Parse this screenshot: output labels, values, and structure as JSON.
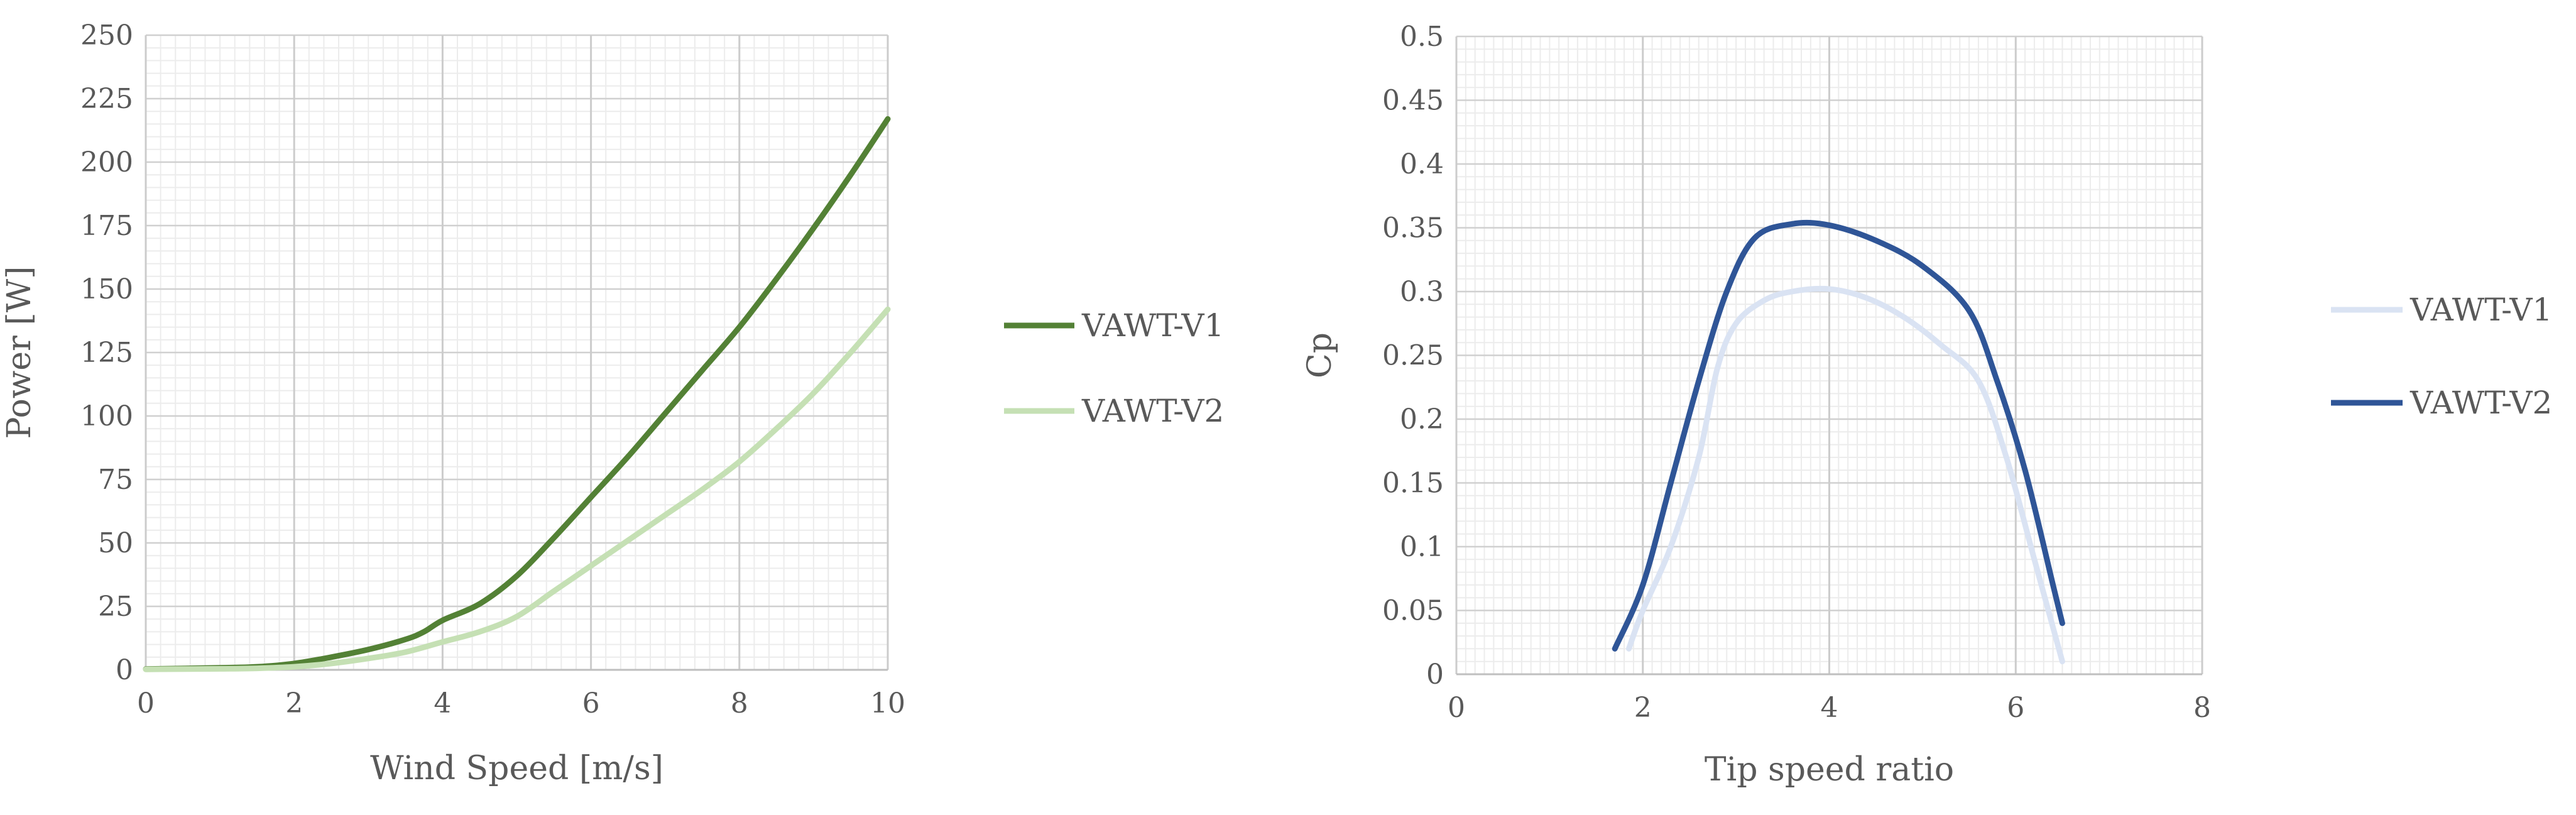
{
  "chart_data": [
    {
      "type": "line",
      "xlabel": "Wind Speed [m/s]",
      "ylabel": "Power [W]",
      "xlim": [
        0,
        10
      ],
      "ylim": [
        0,
        250
      ],
      "xticks": [
        0,
        2,
        4,
        6,
        8,
        10
      ],
      "yticks": [
        0,
        25,
        50,
        75,
        100,
        125,
        150,
        175,
        200,
        225,
        250
      ],
      "grid": true,
      "legend_position": "right",
      "series": [
        {
          "name": "VAWT-V1",
          "color": "#538135",
          "points": [
            [
              0,
              0.3
            ],
            [
              1,
              0.8
            ],
            [
              1.5,
              1.2
            ],
            [
              2,
              2.5
            ],
            [
              2.5,
              5
            ],
            [
              3,
              8
            ],
            [
              3.5,
              12
            ],
            [
              3.75,
              15
            ],
            [
              4,
              19.5
            ],
            [
              4.5,
              26
            ],
            [
              5,
              37
            ],
            [
              5.5,
              52
            ],
            [
              6,
              68
            ],
            [
              6.5,
              84
            ],
            [
              7,
              101
            ],
            [
              7.5,
              118
            ],
            [
              8,
              135
            ],
            [
              8.5,
              154
            ],
            [
              9,
              174
            ],
            [
              9.5,
              195
            ],
            [
              10,
              217
            ]
          ]
        },
        {
          "name": "VAWT-V2",
          "color": "#C5E0B4",
          "points": [
            [
              0,
              0.2
            ],
            [
              1,
              0.4
            ],
            [
              1.5,
              0.6
            ],
            [
              2,
              1.2
            ],
            [
              2.5,
              2.5
            ],
            [
              3,
              4.5
            ],
            [
              3.5,
              7
            ],
            [
              4,
              11
            ],
            [
              4.5,
              15
            ],
            [
              5,
              21
            ],
            [
              5.5,
              31
            ],
            [
              6,
              41
            ],
            [
              6.5,
              51
            ],
            [
              7,
              61
            ],
            [
              7.5,
              71
            ],
            [
              8,
              82
            ],
            [
              8.5,
              95
            ],
            [
              9,
              109
            ],
            [
              9.5,
              125
            ],
            [
              10,
              142
            ]
          ]
        }
      ]
    },
    {
      "type": "line",
      "xlabel": "Tip speed ratio",
      "ylabel": "Cp",
      "xlim": [
        0,
        8
      ],
      "ylim": [
        0,
        0.5
      ],
      "xticks": [
        0,
        2,
        4,
        6,
        8
      ],
      "yticks": [
        0,
        0.05,
        0.1,
        0.15,
        0.2,
        0.25,
        0.3,
        0.35,
        0.4,
        0.45,
        0.5
      ],
      "grid": true,
      "legend_position": "right",
      "series": [
        {
          "name": "VAWT-V1",
          "color": "#DAE3F3",
          "points": [
            [
              1.85,
              0.02
            ],
            [
              2,
              0.05
            ],
            [
              2.3,
              0.1
            ],
            [
              2.6,
              0.17
            ],
            [
              2.8,
              0.24
            ],
            [
              3,
              0.275
            ],
            [
              3.3,
              0.293
            ],
            [
              3.6,
              0.3
            ],
            [
              4,
              0.302
            ],
            [
              4.4,
              0.295
            ],
            [
              4.8,
              0.28
            ],
            [
              5.2,
              0.258
            ],
            [
              5.6,
              0.23
            ],
            [
              5.9,
              0.17
            ],
            [
              6.2,
              0.09
            ],
            [
              6.5,
              0.01
            ]
          ]
        },
        {
          "name": "VAWT-V2",
          "color": "#2F5597",
          "points": [
            [
              1.7,
              0.02
            ],
            [
              2,
              0.07
            ],
            [
              2.3,
              0.15
            ],
            [
              2.6,
              0.23
            ],
            [
              2.9,
              0.3
            ],
            [
              3.2,
              0.342
            ],
            [
              3.6,
              0.353
            ],
            [
              4,
              0.352
            ],
            [
              4.5,
              0.34
            ],
            [
              5,
              0.32
            ],
            [
              5.5,
              0.285
            ],
            [
              5.8,
              0.23
            ],
            [
              6.1,
              0.16
            ],
            [
              6.4,
              0.07
            ],
            [
              6.5,
              0.04
            ]
          ]
        }
      ]
    }
  ]
}
